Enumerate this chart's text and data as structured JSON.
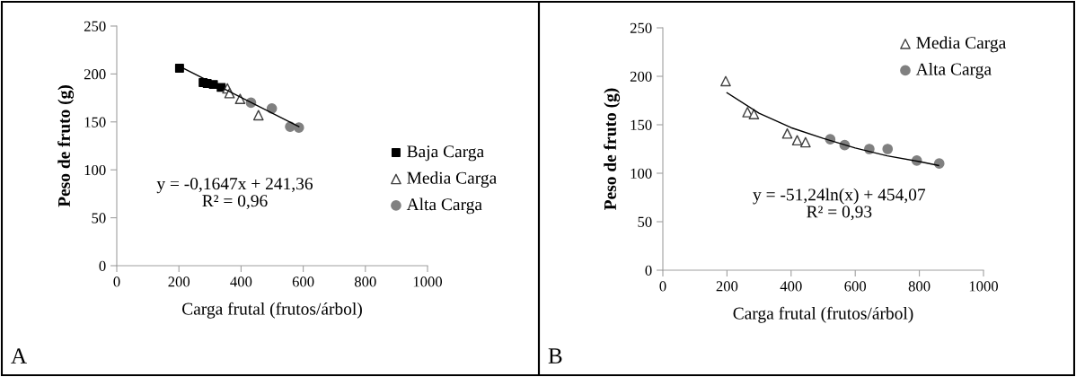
{
  "chart_data": [
    {
      "type": "scatter",
      "xlabel": "Carga frutal (frutos/árbol)",
      "ylabel": "Peso de fruto (g)",
      "xlim": [
        0,
        1000
      ],
      "xticks": [
        0,
        200,
        400,
        600,
        800,
        1000
      ],
      "ylim": [
        0,
        250
      ],
      "yticks": [
        0,
        50,
        100,
        150,
        200,
        250
      ],
      "grid": false,
      "legend": "right",
      "annotations": [
        "y = -0,1647x + 241,36\nR² = 0,96",
        "A"
      ],
      "series": [
        {
          "name": "Baja Carga",
          "color": "#000000",
          "marker": "square",
          "x": [
            202,
            278,
            291,
            311,
            336
          ],
          "values": [
            206,
            191,
            190,
            189,
            186
          ]
        },
        {
          "name": "Media Carga",
          "color": "#404040",
          "marker": "triangle",
          "x": [
            356,
            363,
            397,
            456
          ],
          "values": [
            185,
            180,
            174,
            157
          ]
        },
        {
          "name": "Alta Carga",
          "color": "#808080",
          "marker": "circle",
          "x": [
            432,
            499,
            558,
            586
          ],
          "values": [
            170,
            164,
            145,
            144
          ]
        },
        {
          "type": "line",
          "color": "#000000",
          "marker": "none",
          "x": [
            202,
            586
          ],
          "values": [
            208,
            145
          ]
        }
      ]
    },
    {
      "type": "scatter",
      "xlabel": "Carga frutal (frutos/árbol)",
      "ylabel": "Peso de fruto (g)",
      "xlim": [
        0,
        1000
      ],
      "xticks": [
        0,
        200,
        400,
        600,
        800,
        1000
      ],
      "ylim": [
        0,
        250
      ],
      "yticks": [
        0,
        50,
        100,
        150,
        200,
        250
      ],
      "grid": false,
      "legend": "top right",
      "annotations": [
        "y = -51,24ln(x) + 454,07\nR² = 0,93",
        "B"
      ],
      "series": [
        {
          "name": "Media Carga",
          "color": "#404040",
          "marker": "triangle",
          "x": [
            196,
            264,
            284,
            388,
            419,
            445
          ],
          "values": [
            195,
            163,
            161,
            141,
            134,
            132
          ]
        },
        {
          "name": "Alta Carga",
          "color": "#808080",
          "marker": "circle",
          "x": [
            522,
            567,
            644,
            701,
            792,
            862
          ],
          "values": [
            135,
            129,
            125,
            125,
            113,
            110
          ]
        },
        {
          "type": "line",
          "color": "#000000",
          "marker": "none",
          "x": [
            200,
            300,
            400,
            500,
            600,
            700,
            800,
            860
          ],
          "values": [
            183,
            162,
            147,
            136,
            126,
            118,
            112,
            108
          ]
        }
      ]
    }
  ]
}
